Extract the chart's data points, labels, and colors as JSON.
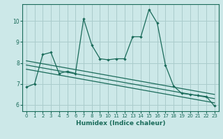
{
  "xlabel": "Humidex (Indice chaleur)",
  "bg_color": "#cce8e8",
  "grid_color": "#aacccc",
  "line_color": "#1a6b5a",
  "xlim": [
    -0.5,
    23.5
  ],
  "ylim": [
    5.7,
    10.8
  ],
  "yticks": [
    6,
    7,
    8,
    9,
    10
  ],
  "xticks": [
    0,
    1,
    2,
    3,
    4,
    5,
    6,
    7,
    8,
    9,
    10,
    11,
    12,
    13,
    14,
    15,
    16,
    17,
    18,
    19,
    20,
    21,
    22,
    23
  ],
  "series1_x": [
    0,
    1,
    2,
    3,
    4,
    5,
    6,
    7,
    8,
    9,
    10,
    11,
    12,
    13,
    14,
    15,
    16,
    17,
    18,
    19,
    20,
    21,
    22,
    23
  ],
  "series1_y": [
    6.85,
    7.0,
    8.4,
    8.5,
    7.5,
    7.6,
    7.5,
    10.1,
    8.85,
    8.2,
    8.15,
    8.2,
    8.2,
    9.25,
    9.25,
    10.55,
    9.9,
    7.9,
    6.9,
    6.55,
    6.5,
    6.45,
    6.4,
    5.95
  ],
  "trend2_x": [
    0,
    23
  ],
  "trend2_y": [
    8.1,
    6.5
  ],
  "trend3_x": [
    0,
    23
  ],
  "trend3_y": [
    7.9,
    6.3
  ],
  "trend4_x": [
    0,
    23
  ],
  "trend4_y": [
    7.7,
    6.1
  ]
}
